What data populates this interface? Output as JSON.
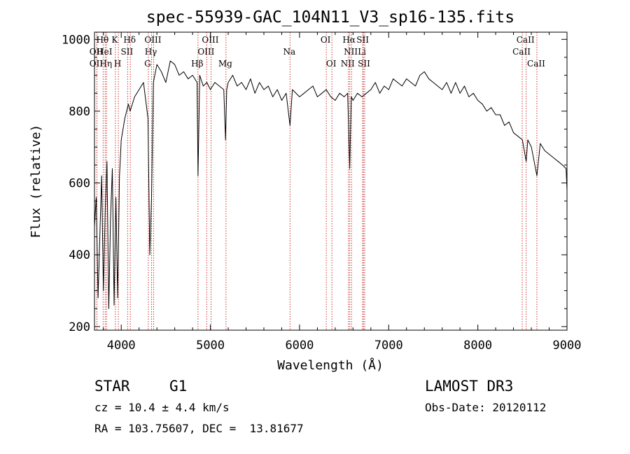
{
  "chart_data": {
    "type": "line",
    "title": "spec-55939-GAC_104N11_V3_sp16-135.fits",
    "xlabel": "Wavelength (Å)",
    "ylabel": "Flux (relative)",
    "xlim": [
      3700,
      9000
    ],
    "ylim": [
      190,
      1020
    ],
    "xticks": [
      4000,
      5000,
      6000,
      7000,
      8000,
      9000
    ],
    "yticks": [
      200,
      400,
      600,
      800,
      1000
    ],
    "series": [
      {
        "name": "spectrum",
        "color": "#000000",
        "x": [
          3700,
          3720,
          3740,
          3760,
          3780,
          3800,
          3820,
          3840,
          3860,
          3880,
          3900,
          3920,
          3940,
          3960,
          3980,
          4000,
          4040,
          4080,
          4100,
          4150,
          4200,
          4250,
          4300,
          4320,
          4340,
          4360,
          4400,
          4450,
          4500,
          4550,
          4600,
          4650,
          4700,
          4750,
          4800,
          4850,
          4861,
          4880,
          4920,
          4960,
          5000,
          5050,
          5100,
          5150,
          5170,
          5183,
          5200,
          5250,
          5300,
          5350,
          5400,
          5450,
          5500,
          5550,
          5600,
          5650,
          5700,
          5750,
          5800,
          5850,
          5893,
          5920,
          6000,
          6050,
          6100,
          6150,
          6200,
          6250,
          6300,
          6350,
          6400,
          6450,
          6500,
          6540,
          6563,
          6580,
          6600,
          6650,
          6700,
          6750,
          6800,
          6850,
          6900,
          6950,
          7000,
          7050,
          7100,
          7150,
          7200,
          7250,
          7300,
          7350,
          7400,
          7450,
          7500,
          7550,
          7600,
          7650,
          7700,
          7750,
          7800,
          7850,
          7900,
          7950,
          8000,
          8050,
          8100,
          8150,
          8200,
          8250,
          8300,
          8350,
          8400,
          8450,
          8500,
          8542,
          8560,
          8600,
          8662,
          8700,
          8750,
          8800,
          8850,
          8900,
          8950,
          8990,
          9000
        ],
        "y": [
          480,
          560,
          280,
          450,
          620,
          300,
          520,
          660,
          250,
          500,
          640,
          260,
          560,
          280,
          620,
          720,
          780,
          820,
          800,
          840,
          860,
          880,
          780,
          400,
          560,
          880,
          930,
          910,
          880,
          940,
          930,
          900,
          910,
          890,
          900,
          880,
          620,
          900,
          870,
          880,
          860,
          880,
          870,
          860,
          720,
          860,
          880,
          900,
          870,
          880,
          860,
          890,
          850,
          880,
          860,
          870,
          840,
          860,
          830,
          850,
          760,
          860,
          840,
          850,
          860,
          870,
          840,
          850,
          860,
          840,
          830,
          850,
          840,
          850,
          640,
          840,
          830,
          850,
          840,
          850,
          860,
          880,
          850,
          870,
          860,
          890,
          880,
          870,
          890,
          880,
          870,
          900,
          910,
          890,
          880,
          870,
          860,
          880,
          850,
          880,
          850,
          870,
          840,
          850,
          830,
          820,
          800,
          810,
          790,
          790,
          760,
          770,
          740,
          730,
          720,
          660,
          720,
          700,
          620,
          710,
          690,
          680,
          670,
          660,
          650,
          640,
          580
        ]
      }
    ],
    "lines": [
      {
        "name": "Hθ",
        "x": 3797,
        "row": 1
      },
      {
        "name": "OII",
        "x": 3727,
        "row": 2
      },
      {
        "name": "HeI",
        "x": 3820,
        "row": 2
      },
      {
        "name": "OII",
        "x": 3727,
        "row": 3
      },
      {
        "name": "Hη",
        "x": 3835,
        "row": 3
      },
      {
        "name": "K",
        "x": 3934,
        "row": 1
      },
      {
        "name": "SII",
        "x": 4072,
        "row": 2
      },
      {
        "name": "H",
        "x": 3968,
        "row": 3
      },
      {
        "name": "Hδ",
        "x": 4102,
        "row": 1
      },
      {
        "name": "OIII",
        "x": 4363,
        "row": 1
      },
      {
        "name": "Hγ",
        "x": 4340,
        "row": 2
      },
      {
        "name": "G",
        "x": 4304,
        "row": 3
      },
      {
        "name": "OIII",
        "x": 5007,
        "row": 1
      },
      {
        "name": "OIII",
        "x": 4959,
        "row": 2
      },
      {
        "name": "Hβ",
        "x": 4861,
        "row": 3
      },
      {
        "name": "Mg",
        "x": 5175,
        "row": 3
      },
      {
        "name": "Na",
        "x": 5893,
        "row": 2
      },
      {
        "name": "OI",
        "x": 6300,
        "row": 1
      },
      {
        "name": "OI",
        "x": 6363,
        "row": 3
      },
      {
        "name": "Hα",
        "x": 6563,
        "row": 1
      },
      {
        "name": "SII",
        "x": 6716,
        "row": 1
      },
      {
        "name": "NII",
        "x": 6583,
        "row": 2
      },
      {
        "name": "Li",
        "x": 6708,
        "row": 2
      },
      {
        "name": "NII",
        "x": 6548,
        "row": 3
      },
      {
        "name": "SII",
        "x": 6731,
        "row": 3
      },
      {
        "name": "CaII",
        "x": 8542,
        "row": 1
      },
      {
        "name": "CaII",
        "x": 8498,
        "row": 2
      },
      {
        "name": "CaII",
        "x": 8662,
        "row": 3
      }
    ]
  },
  "info": {
    "class": "STAR",
    "subclass": "G1",
    "survey": "LAMOST DR3",
    "cz": "cz = 10.4 ± 4.4 km/s",
    "obs_date": "Obs-Date: 20120112",
    "coords": "RA = 103.75607, DEC =  13.81677"
  },
  "colors": {
    "line_marker": "#cc3333",
    "spectrum": "#000000"
  }
}
